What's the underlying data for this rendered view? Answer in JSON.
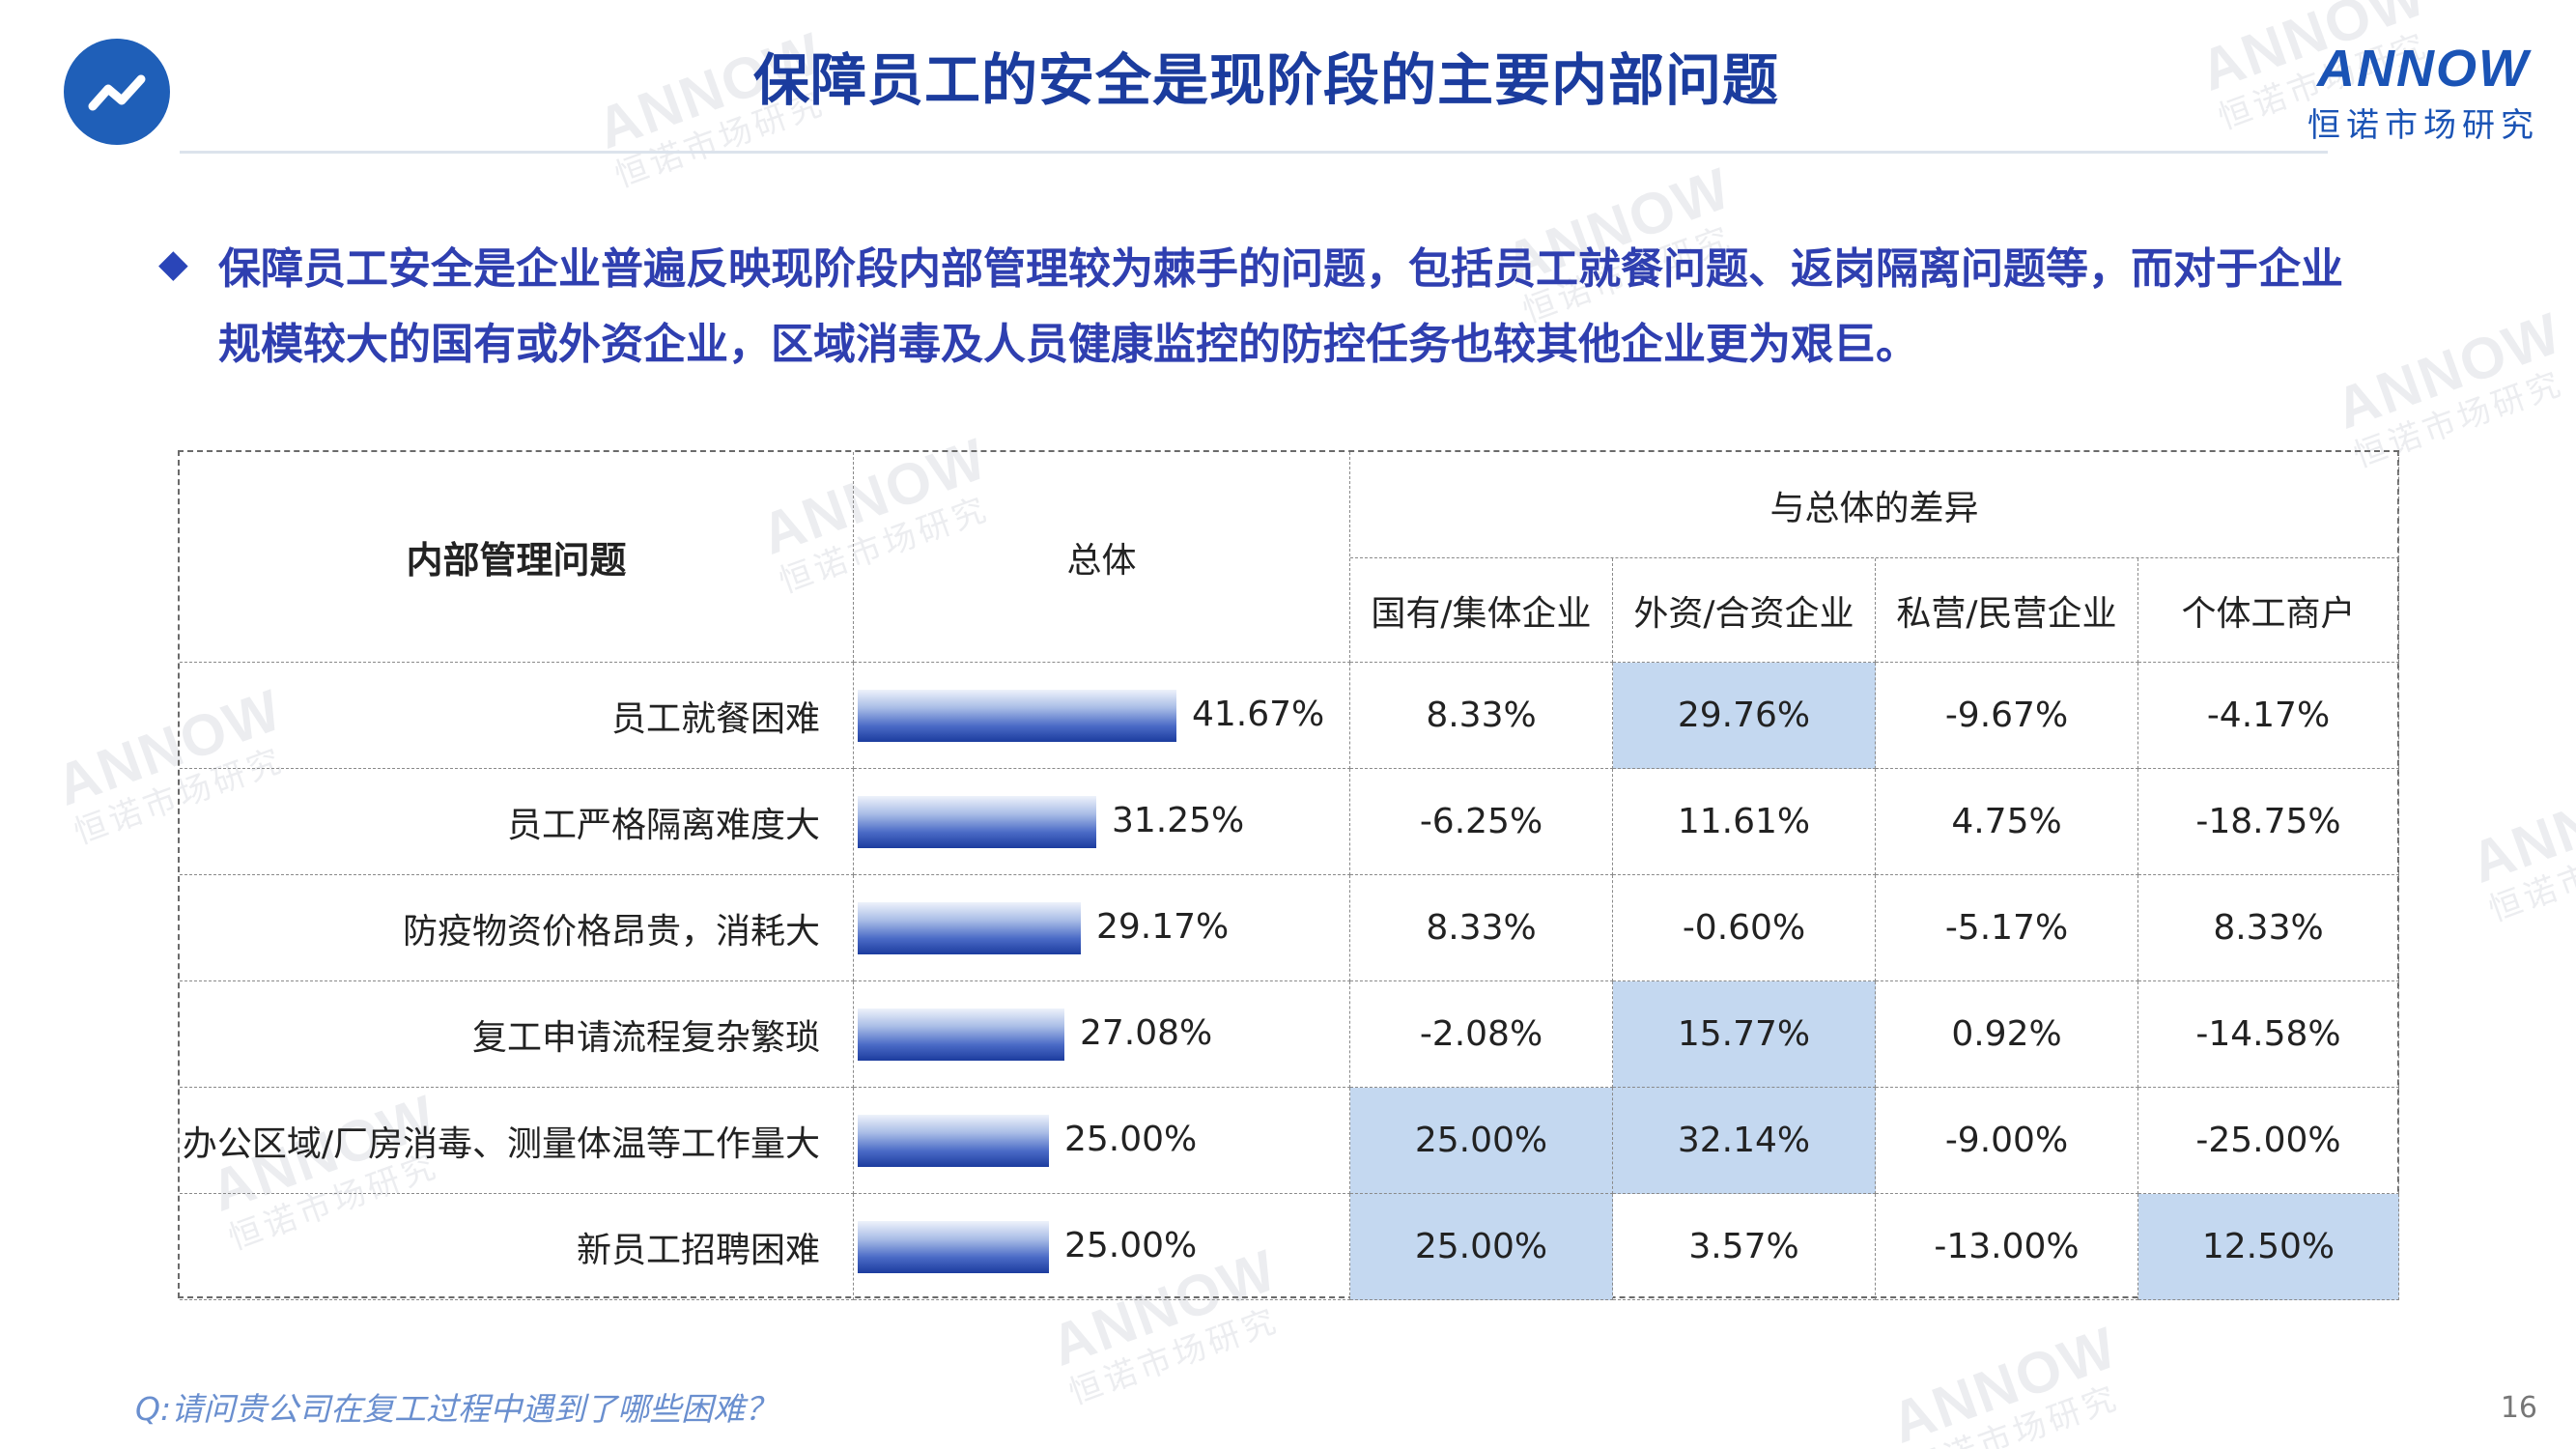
{
  "header": {
    "title": "保障员工的安全是现阶段的主要内部问题",
    "brand_name": "ANNOW",
    "brand_sub": "恒诺市场研究"
  },
  "watermark": {
    "name": "ANNOW",
    "sub": "恒诺市场研究"
  },
  "bullet": {
    "line1": "保障员工安全是企业普遍反映现阶段内部管理较为棘手的问题，包括员工就餐问题、返岗隔离问题等，而对于企业",
    "line2": "规模较大的国有或外资企业，区域消毒及人员健康监控的防控任务也较其他企业更为艰巨。"
  },
  "table": {
    "col_issue": "内部管理问题",
    "col_total": "总体",
    "col_diff_group": "与总体的差异",
    "sub_cols": [
      "国有/集体企业",
      "外资/合资企业",
      "私营/民营企业",
      "个体工商户"
    ],
    "rows": [
      {
        "label": "员工就餐困难",
        "total": 41.67,
        "total_text": "41.67%",
        "diffs": [
          "8.33%",
          "29.76%",
          "-9.67%",
          "-4.17%"
        ],
        "highlight": [
          false,
          true,
          false,
          false
        ]
      },
      {
        "label": "员工严格隔离难度大",
        "total": 31.25,
        "total_text": "31.25%",
        "diffs": [
          "-6.25%",
          "11.61%",
          "4.75%",
          "-18.75%"
        ],
        "highlight": [
          false,
          false,
          false,
          false
        ]
      },
      {
        "label": "防疫物资价格昂贵，消耗大",
        "total": 29.17,
        "total_text": "29.17%",
        "diffs": [
          "8.33%",
          "-0.60%",
          "-5.17%",
          "8.33%"
        ],
        "highlight": [
          false,
          false,
          false,
          false
        ]
      },
      {
        "label": "复工申请流程复杂繁琐",
        "total": 27.08,
        "total_text": "27.08%",
        "diffs": [
          "-2.08%",
          "15.77%",
          "0.92%",
          "-14.58%"
        ],
        "highlight": [
          false,
          true,
          false,
          false
        ]
      },
      {
        "label": "办公区域/厂房消毒、测量体温等工作量大",
        "total": 25.0,
        "total_text": "25.00%",
        "diffs": [
          "25.00%",
          "32.14%",
          "-9.00%",
          "-25.00%"
        ],
        "highlight": [
          true,
          true,
          false,
          false
        ]
      },
      {
        "label": "新员工招聘困难",
        "total": 25.0,
        "total_text": "25.00%",
        "diffs": [
          "25.00%",
          "3.57%",
          "-13.00%",
          "12.50%"
        ],
        "highlight": [
          true,
          false,
          false,
          true
        ]
      }
    ]
  },
  "footnote": "Q:请问贵公司在复工过程中遇到了哪些困难？",
  "page_number": "16",
  "colors": {
    "title": "#1b3c9e",
    "bullet": "#2f3fb0",
    "highlight": "#c4d8f0",
    "bar": "#2a4aaa",
    "logo": "#1f5fb8"
  },
  "icons": {
    "logo": "trend-line-icon",
    "bullet": "diamond-bullet-icon"
  }
}
